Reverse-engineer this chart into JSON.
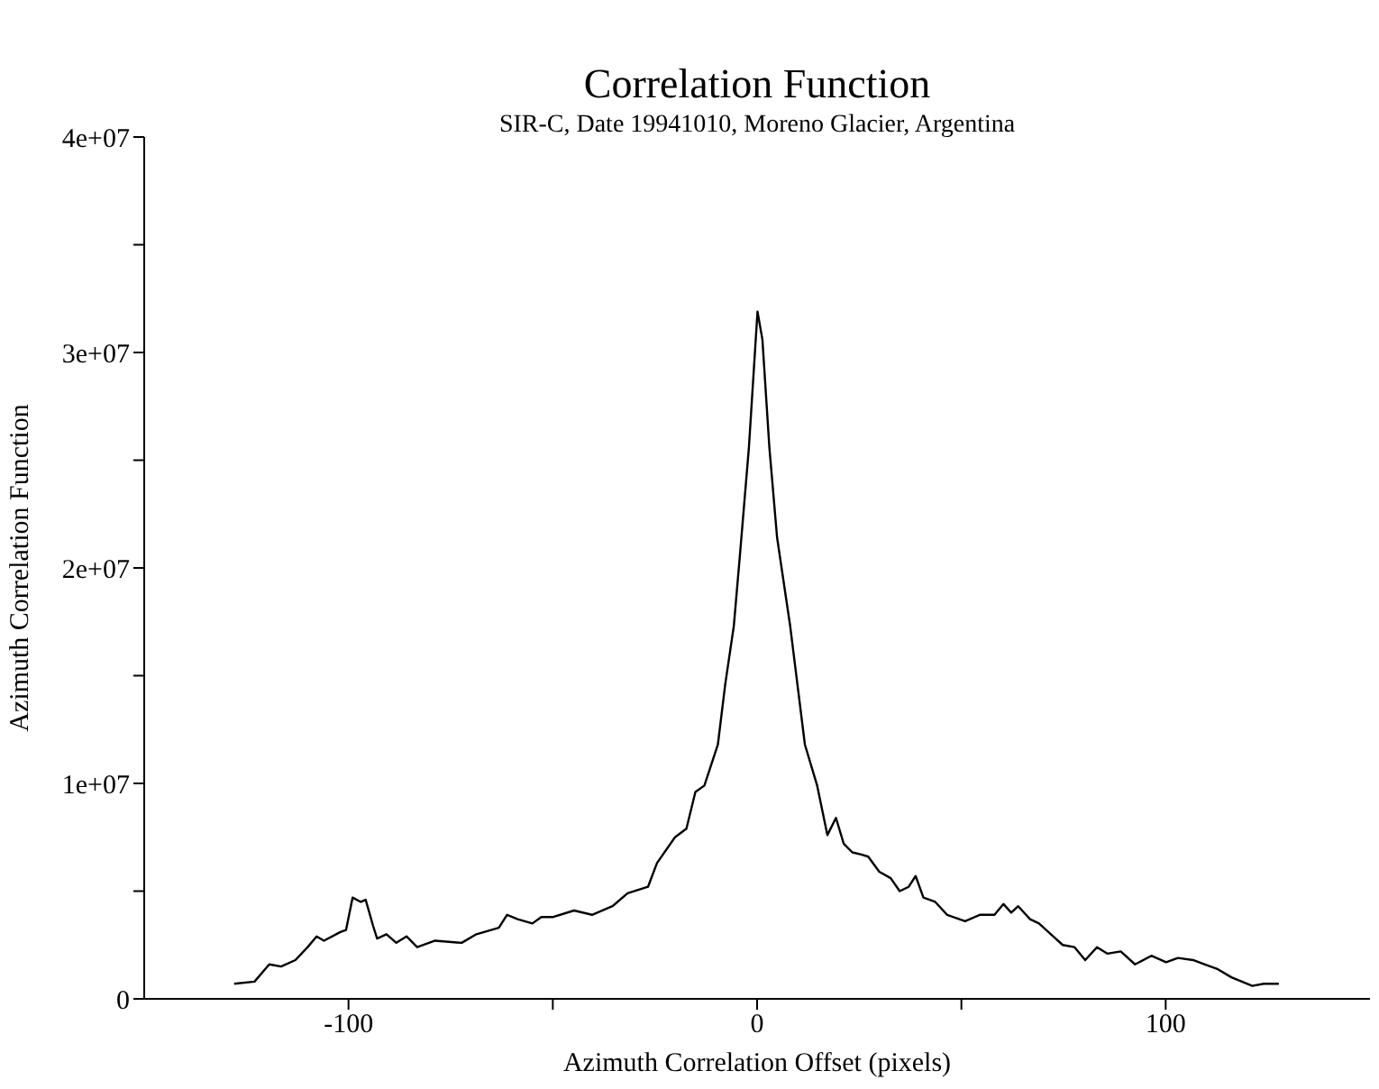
{
  "chart_data": {
    "type": "line",
    "title": "Correlation Function",
    "subtitle": "SIR-C, Date 19941010, Moreno Glacier, Argentina",
    "xlabel": "Azimuth Correlation Offset  (pixels)",
    "ylabel": "Azimuth Correlation Function",
    "x": [
      -128,
      -123,
      -119.4,
      -116.5,
      -113,
      -110,
      -107.8,
      -106,
      -102,
      -100.6,
      -99,
      -97,
      -95.8,
      -94,
      -93,
      -90.7,
      -88.3,
      -85.8,
      -83.2,
      -78.8,
      -72.3,
      -68.7,
      -63.2,
      -61.2,
      -58.6,
      -55,
      -52.8,
      -49.9,
      -44.8,
      -40.4,
      -35.4,
      -31.7,
      -26.7,
      -24.5,
      -20.1,
      -17.3,
      -15.1,
      -12.9,
      -9.6,
      -7.8,
      -5.7,
      -4.2,
      -2,
      0.1,
      1.3,
      3,
      4.9,
      8.1,
      11.7,
      14.7,
      17.2,
      19.3,
      21.2,
      23.3,
      25.5,
      27.2,
      29.9,
      32.7,
      34.9,
      37.1,
      38.8,
      40.7,
      43.6,
      46.5,
      50.9,
      54.5,
      58.1,
      60.3,
      62.2,
      63.9,
      66.8,
      69,
      71.9,
      74.8,
      77.7,
      80.3,
      83.2,
      85.7,
      89,
      92.5,
      96.5,
      100.1,
      103,
      106.7,
      109.6,
      112.5,
      116.1,
      121.2,
      124,
      127.7
    ],
    "series": [
      {
        "color": "#000000",
        "values": [
          700000,
          800000,
          1600000,
          1500000,
          1800000,
          2400000,
          2900000,
          2700000,
          3100000,
          3200000,
          4700000,
          4500000,
          4600000,
          3400000,
          2800000,
          3000000,
          2600000,
          2900000,
          2400000,
          2700000,
          2600000,
          3000000,
          3300000,
          3900000,
          3700000,
          3500000,
          3800000,
          3800000,
          4100000,
          3900000,
          4300000,
          4900000,
          5200000,
          6300000,
          7500000,
          7900000,
          9600000,
          9900000,
          11800000,
          14600000,
          17300000,
          20600000,
          25600000,
          31900000,
          30600000,
          25600000,
          21400000,
          17300000,
          11800000,
          9900000,
          7600000,
          8400000,
          7200000,
          6800000,
          6700000,
          6600000,
          5900000,
          5600000,
          5000000,
          5200000,
          5700000,
          4700000,
          4500000,
          3900000,
          3600000,
          3900000,
          3900000,
          4400000,
          4000000,
          4300000,
          3700000,
          3500000,
          3000000,
          2500000,
          2400000,
          1800000,
          2400000,
          2100000,
          2200000,
          1600000,
          2000000,
          1700000,
          1900000,
          1800000,
          1600000,
          1400000,
          1000000,
          600000,
          700000,
          700000
        ]
      }
    ],
    "xlim": [
      -150,
      150
    ],
    "xticks": [
      -100,
      {
        "value": -50,
        "label": null
      },
      0,
      {
        "value": 50,
        "label": null
      },
      100
    ],
    "ylim": [
      0,
      40000000
    ],
    "yticks": [
      0,
      {
        "value": 5000000,
        "label": null
      },
      {
        "value": 10000000,
        "label": "1e+07"
      },
      {
        "value": 15000000,
        "label": null
      },
      {
        "value": 20000000,
        "label": "2e+07"
      },
      {
        "value": 25000000,
        "label": null
      },
      {
        "value": 30000000,
        "label": "3e+07"
      },
      {
        "value": 35000000,
        "label": null
      },
      {
        "value": 40000000,
        "label": "4e+07"
      }
    ],
    "grid": false,
    "legend": false,
    "marker": "none",
    "line_style": "solid"
  }
}
